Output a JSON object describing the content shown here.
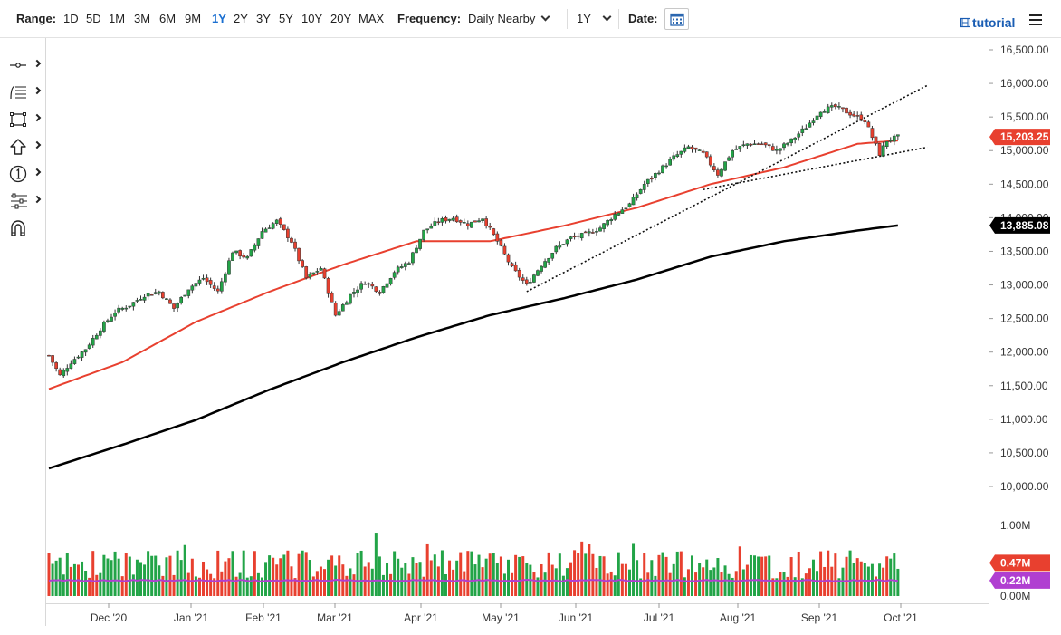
{
  "toolbar": {
    "range_label": "Range:",
    "ranges": [
      "1D",
      "5D",
      "1M",
      "3M",
      "6M",
      "9M",
      "1Y",
      "2Y",
      "3Y",
      "5Y",
      "10Y",
      "20Y",
      "MAX"
    ],
    "active_range": "1Y",
    "frequency_label": "Frequency:",
    "frequency_value": "Daily Nearby",
    "period_value": "1Y",
    "date_label": "Date:",
    "tutorial_label": "tutorial",
    "icons": [
      "calendar-icon",
      "menu-icon",
      "film-icon"
    ]
  },
  "drawing_tools": [
    "crosshair-tool",
    "fib-tool",
    "rectangle-tool",
    "arrow-tool",
    "number-label-tool",
    "pattern-tool",
    "magnet-tool"
  ],
  "colors": {
    "up": "#22a447",
    "down": "#e8402f",
    "ma_fast": "#e8402f",
    "ma_slow": "#000000",
    "volume_avg": "#b03fd1",
    "last_price_tag": "#e8402f",
    "slow_ma_tag": "#000000",
    "volume_tag": "#e8402f",
    "volume_avg_tag": "#b03fd1"
  },
  "chart_data": {
    "type": "candlestick",
    "y_axis": {
      "ticks": [
        "16,500.00",
        "16,000.00",
        "15,500.00",
        "15,000.00",
        "14,500.00",
        "14,000.00",
        "13,500.00",
        "13,000.00",
        "12,500.00",
        "12,000.00",
        "11,500.00",
        "11,000.00",
        "10,500.00",
        "10,000.00"
      ],
      "tick_values": [
        16500,
        16000,
        15500,
        15000,
        14500,
        14000,
        13500,
        13000,
        12500,
        12000,
        11500,
        11000,
        10500,
        10000
      ],
      "range": [
        9900,
        16550
      ]
    },
    "x_axis": {
      "labels": [
        "Dec '20",
        "Jan '21",
        "Feb '21",
        "Mar '21",
        "Apr '21",
        "May '21",
        "Jun '21",
        "Jul '21",
        "Aug '21",
        "Sep '21",
        "Oct '21"
      ]
    },
    "price_path": [
      [
        0,
        11950
      ],
      [
        3,
        11650
      ],
      [
        6,
        11850
      ],
      [
        10,
        12050
      ],
      [
        14,
        12350
      ],
      [
        18,
        12600
      ],
      [
        22,
        12700
      ],
      [
        26,
        12850
      ],
      [
        30,
        12900
      ],
      [
        34,
        12650
      ],
      [
        38,
        12950
      ],
      [
        42,
        13100
      ],
      [
        46,
        12900
      ],
      [
        50,
        13500
      ],
      [
        54,
        13400
      ],
      [
        58,
        13800
      ],
      [
        62,
        13950
      ],
      [
        66,
        13650
      ],
      [
        70,
        13100
      ],
      [
        74,
        13250
      ],
      [
        78,
        12550
      ],
      [
        82,
        12850
      ],
      [
        86,
        13050
      ],
      [
        90,
        12900
      ],
      [
        94,
        13200
      ],
      [
        98,
        13350
      ],
      [
        102,
        13800
      ],
      [
        106,
        13950
      ],
      [
        110,
        14000
      ],
      [
        114,
        13900
      ],
      [
        118,
        14000
      ],
      [
        122,
        13650
      ],
      [
        126,
        13250
      ],
      [
        130,
        13000
      ],
      [
        134,
        13300
      ],
      [
        138,
        13550
      ],
      [
        142,
        13700
      ],
      [
        146,
        13750
      ],
      [
        150,
        13850
      ],
      [
        154,
        14050
      ],
      [
        158,
        14200
      ],
      [
        162,
        14500
      ],
      [
        166,
        14700
      ],
      [
        170,
        14900
      ],
      [
        174,
        15050
      ],
      [
        178,
        14950
      ],
      [
        182,
        14650
      ],
      [
        186,
        15000
      ],
      [
        190,
        15100
      ],
      [
        194,
        15100
      ],
      [
        198,
        15000
      ],
      [
        202,
        15150
      ],
      [
        206,
        15350
      ],
      [
        210,
        15600
      ],
      [
        214,
        15650
      ],
      [
        218,
        15550
      ],
      [
        222,
        15450
      ],
      [
        226,
        14950
      ],
      [
        228,
        15150
      ],
      [
        231,
        15203.25
      ]
    ],
    "ma_fast": [
      [
        0,
        11450
      ],
      [
        20,
        11850
      ],
      [
        40,
        12450
      ],
      [
        60,
        12900
      ],
      [
        80,
        13300
      ],
      [
        100,
        13650
      ],
      [
        120,
        13650
      ],
      [
        140,
        13880
      ],
      [
        160,
        14150
      ],
      [
        180,
        14500
      ],
      [
        200,
        14750
      ],
      [
        220,
        15100
      ],
      [
        231,
        15150
      ]
    ],
    "ma_slow": [
      [
        0,
        10270
      ],
      [
        20,
        10620
      ],
      [
        40,
        10990
      ],
      [
        60,
        11440
      ],
      [
        80,
        11850
      ],
      [
        100,
        12220
      ],
      [
        120,
        12550
      ],
      [
        140,
        12800
      ],
      [
        160,
        13080
      ],
      [
        180,
        13420
      ],
      [
        200,
        13650
      ],
      [
        220,
        13810
      ],
      [
        231,
        13885.08
      ]
    ],
    "trendlines": [
      {
        "from": [
          130,
          12900
        ],
        "to": [
          239,
          15970
        ]
      },
      {
        "from": [
          178,
          14420
        ],
        "to": [
          239,
          15050
        ]
      }
    ],
    "last_price_tag": "15,203.25",
    "slow_ma_tag": "13,885.08",
    "volume": {
      "ticks": [
        "1.00M",
        "0.00M"
      ],
      "last_tag": "0.47M",
      "avg_tag": "0.22M",
      "avg_level": 0.22
    }
  }
}
